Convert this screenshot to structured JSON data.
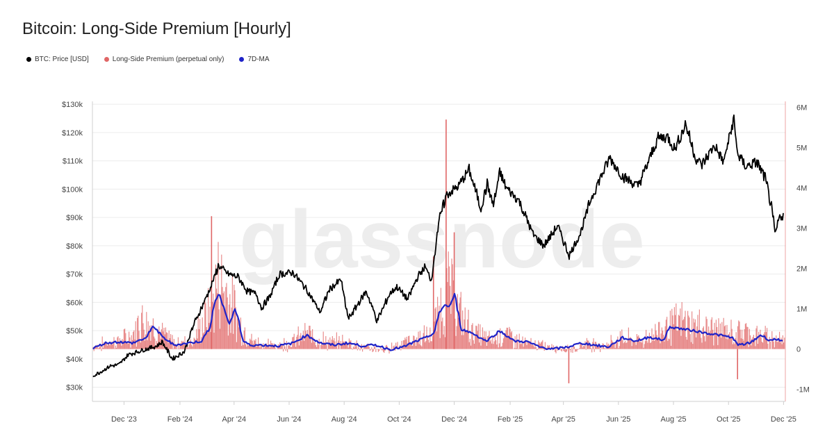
{
  "title": "Bitcoin: Long-Side Premium [Hourly]",
  "watermark": "glassnode",
  "colors": {
    "price": "#000000",
    "premium": "#e06666",
    "ma": "#1f23c8",
    "grid": "#ececec",
    "axis": "#cfcfcf"
  },
  "chart_data": {
    "type": "line",
    "title": "Bitcoin: Long-Side Premium [Hourly]",
    "legend_position": "top-left",
    "grid": true,
    "x_range": [
      "2023-10-27",
      "2025-12-03"
    ],
    "x_ticks": [
      {
        "date": "2023-12-01",
        "label": "Dec '23"
      },
      {
        "date": "2024-02-01",
        "label": "Feb '24"
      },
      {
        "date": "2024-04-01",
        "label": "Apr '24"
      },
      {
        "date": "2024-06-01",
        "label": "Jun '24"
      },
      {
        "date": "2024-08-01",
        "label": "Aug '24"
      },
      {
        "date": "2024-10-01",
        "label": "Oct '24"
      },
      {
        "date": "2024-12-01",
        "label": "Dec '24"
      },
      {
        "date": "2025-02-01",
        "label": "Feb '25"
      },
      {
        "date": "2025-04-01",
        "label": "Apr '25"
      },
      {
        "date": "2025-06-01",
        "label": "Jun '25"
      },
      {
        "date": "2025-08-01",
        "label": "Aug '25"
      },
      {
        "date": "2025-10-01",
        "label": "Oct '25"
      },
      {
        "date": "2025-12-01",
        "label": "Dec '25"
      }
    ],
    "y_left": {
      "range": [
        25000,
        131000
      ],
      "ticks": [
        {
          "v": 30000,
          "label": "$30k"
        },
        {
          "v": 40000,
          "label": "$40k"
        },
        {
          "v": 50000,
          "label": "$50k"
        },
        {
          "v": 60000,
          "label": "$60k"
        },
        {
          "v": 70000,
          "label": "$70k"
        },
        {
          "v": 80000,
          "label": "$80k"
        },
        {
          "v": 90000,
          "label": "$90k"
        },
        {
          "v": 100000,
          "label": "$100k"
        },
        {
          "v": 110000,
          "label": "$110k"
        },
        {
          "v": 120000,
          "label": "$120k"
        },
        {
          "v": 130000,
          "label": "$130k"
        }
      ]
    },
    "y_right": {
      "range": [
        -1300000,
        6150000
      ],
      "ticks": [
        {
          "v": -1000000,
          "label": "-1M"
        },
        {
          "v": 0,
          "label": "0"
        },
        {
          "v": 1000000,
          "label": "1M"
        },
        {
          "v": 2000000,
          "label": "2M"
        },
        {
          "v": 3000000,
          "label": "3M"
        },
        {
          "v": 4000000,
          "label": "4M"
        },
        {
          "v": 5000000,
          "label": "5M"
        },
        {
          "v": 6000000,
          "label": "6M"
        }
      ]
    },
    "series": [
      {
        "name": "BTC: Price [USD]",
        "axis": "left",
        "style": "line",
        "x": [
          "2023-10-27",
          "2023-11-05",
          "2023-11-15",
          "2023-11-25",
          "2023-12-05",
          "2023-12-20",
          "2024-01-05",
          "2024-01-12",
          "2024-01-23",
          "2024-02-05",
          "2024-02-15",
          "2024-03-01",
          "2024-03-10",
          "2024-03-14",
          "2024-03-25",
          "2024-04-05",
          "2024-04-15",
          "2024-04-25",
          "2024-05-01",
          "2024-05-10",
          "2024-05-21",
          "2024-06-05",
          "2024-06-20",
          "2024-07-05",
          "2024-07-15",
          "2024-07-28",
          "2024-08-05",
          "2024-08-15",
          "2024-08-25",
          "2024-09-06",
          "2024-09-20",
          "2024-09-28",
          "2024-10-10",
          "2024-10-20",
          "2024-10-29",
          "2024-11-05",
          "2024-11-10",
          "2024-11-13",
          "2024-11-22",
          "2024-12-05",
          "2024-12-17",
          "2024-12-30",
          "2025-01-06",
          "2025-01-13",
          "2025-01-20",
          "2025-01-27",
          "2025-02-10",
          "2025-02-26",
          "2025-03-10",
          "2025-03-25",
          "2025-04-07",
          "2025-04-20",
          "2025-05-01",
          "2025-05-10",
          "2025-05-22",
          "2025-06-05",
          "2025-06-22",
          "2025-07-03",
          "2025-07-14",
          "2025-07-25",
          "2025-08-02",
          "2025-08-14",
          "2025-08-25",
          "2025-09-01",
          "2025-09-15",
          "2025-09-25",
          "2025-10-06",
          "2025-10-11",
          "2025-10-20",
          "2025-11-01",
          "2025-11-10",
          "2025-11-17",
          "2025-11-21",
          "2025-11-26",
          "2025-12-01",
          "2025-12-03"
        ],
        "values": [
          34000,
          35500,
          37500,
          38000,
          41500,
          43000,
          44500,
          46000,
          40000,
          42500,
          51500,
          62000,
          69000,
          73000,
          70000,
          69000,
          64000,
          63000,
          58000,
          62000,
          70000,
          70500,
          64500,
          56500,
          64500,
          68000,
          54000,
          59000,
          64000,
          53500,
          63000,
          65500,
          61000,
          68500,
          72500,
          68000,
          80000,
          88000,
          98000,
          101000,
          107000,
          93000,
          102000,
          94000,
          106000,
          100500,
          96000,
          84000,
          80000,
          87000,
          76500,
          85000,
          96500,
          103000,
          111000,
          104500,
          101000,
          109000,
          118000,
          118500,
          114000,
          123000,
          111000,
          108500,
          115500,
          109500,
          124500,
          112000,
          108000,
          109500,
          104000,
          94000,
          84000,
          90000,
          91000,
          87000
        ]
      },
      {
        "name": "Long-Side Premium (perpetual only)",
        "axis": "right",
        "style": "histogram",
        "x": [
          "2023-10-27",
          "2023-11-10",
          "2023-11-25",
          "2023-12-10",
          "2023-12-20",
          "2024-01-05",
          "2024-01-25",
          "2024-02-15",
          "2024-03-05",
          "2024-03-14",
          "2024-03-25",
          "2024-04-05",
          "2024-04-20",
          "2024-05-10",
          "2024-06-01",
          "2024-06-20",
          "2024-07-15",
          "2024-08-05",
          "2024-08-20",
          "2024-09-15",
          "2024-10-01",
          "2024-10-20",
          "2024-11-05",
          "2024-11-15",
          "2024-11-25",
          "2024-12-05",
          "2024-12-20",
          "2025-01-10",
          "2025-01-25",
          "2025-02-15",
          "2025-03-05",
          "2025-03-25",
          "2025-04-10",
          "2025-04-25",
          "2025-05-15",
          "2025-06-05",
          "2025-06-25",
          "2025-07-10",
          "2025-07-25",
          "2025-08-10",
          "2025-08-25",
          "2025-09-15",
          "2025-10-05",
          "2025-10-20",
          "2025-11-01",
          "2025-11-15",
          "2025-11-25",
          "2025-12-03"
        ],
        "values": [
          50000,
          150000,
          200000,
          300000,
          700000,
          450000,
          150000,
          200000,
          850000,
          1500000,
          1200000,
          600000,
          200000,
          100000,
          150000,
          350000,
          150000,
          200000,
          50000,
          0,
          150000,
          250000,
          300000,
          900000,
          1300000,
          800000,
          400000,
          200000,
          350000,
          150000,
          100000,
          50000,
          0,
          150000,
          100000,
          250000,
          200000,
          350000,
          500000,
          600000,
          500000,
          450000,
          350000,
          400000,
          300000,
          250000,
          250000,
          150000
        ],
        "notable_spikes": [
          {
            "date": "2024-03-07",
            "value": 3300000
          },
          {
            "date": "2024-11-08",
            "value": 2300000
          },
          {
            "date": "2024-11-22",
            "value": 5700000
          },
          {
            "date": "2024-12-01",
            "value": 2900000
          },
          {
            "date": "2025-04-07",
            "value": -850000
          },
          {
            "date": "2025-10-11",
            "value": -750000
          }
        ]
      },
      {
        "name": "7D-MA",
        "axis": "right",
        "style": "line",
        "x": [
          "2023-10-27",
          "2023-11-10",
          "2023-11-25",
          "2023-12-10",
          "2023-12-25",
          "2024-01-02",
          "2024-01-12",
          "2024-01-25",
          "2024-02-10",
          "2024-02-25",
          "2024-03-05",
          "2024-03-10",
          "2024-03-15",
          "2024-03-20",
          "2024-03-26",
          "2024-04-01",
          "2024-04-06",
          "2024-04-10",
          "2024-04-18",
          "2024-05-01",
          "2024-05-20",
          "2024-06-05",
          "2024-06-20",
          "2024-07-05",
          "2024-07-20",
          "2024-08-05",
          "2024-08-20",
          "2024-09-05",
          "2024-09-20",
          "2024-10-05",
          "2024-10-20",
          "2024-11-01",
          "2024-11-08",
          "2024-11-14",
          "2024-11-20",
          "2024-11-25",
          "2024-12-01",
          "2024-12-08",
          "2024-12-20",
          "2025-01-05",
          "2025-01-20",
          "2025-02-05",
          "2025-02-20",
          "2025-03-05",
          "2025-03-20",
          "2025-04-05",
          "2025-04-20",
          "2025-05-05",
          "2025-05-20",
          "2025-06-05",
          "2025-06-20",
          "2025-07-05",
          "2025-07-20",
          "2025-07-28",
          "2025-08-10",
          "2025-08-25",
          "2025-09-05",
          "2025-09-20",
          "2025-10-05",
          "2025-10-11",
          "2025-10-25",
          "2025-11-05",
          "2025-11-15",
          "2025-11-25",
          "2025-12-03"
        ],
        "values": [
          20000,
          150000,
          180000,
          150000,
          280000,
          580000,
          300000,
          100000,
          150000,
          200000,
          550000,
          1200000,
          1350000,
          1050000,
          600000,
          1000000,
          700000,
          200000,
          100000,
          100000,
          80000,
          150000,
          350000,
          150000,
          100000,
          150000,
          80000,
          100000,
          -10000,
          50000,
          200000,
          300000,
          400000,
          900000,
          1100000,
          1050000,
          1350000,
          500000,
          400000,
          200000,
          450000,
          200000,
          180000,
          50000,
          0,
          50000,
          150000,
          100000,
          50000,
          280000,
          200000,
          300000,
          220000,
          550000,
          500000,
          450000,
          400000,
          350000,
          280000,
          100000,
          150000,
          350000,
          220000,
          250000,
          100000
        ]
      }
    ]
  }
}
